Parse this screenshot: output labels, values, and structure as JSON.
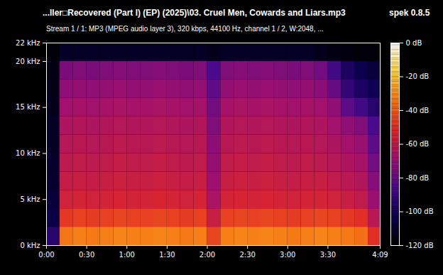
{
  "chart_data": {
    "type": "heatmap",
    "title": "...ller□Recovered (Part I) (EP) (2025)\\03. Cruel Men, Cowards and Liars.mp3",
    "annotation": "spek 0.8.5",
    "subtitle": "Stream 1 / 1: MP3 (MPEG audio layer 3), 320 kbps, 44100 Hz, channel 1 / 2, W:2048, ...",
    "xlim": [
      0,
      249
    ],
    "xticks": [
      {
        "value": 0,
        "label": "0:00"
      },
      {
        "value": 30,
        "label": "0:30"
      },
      {
        "value": 60,
        "label": "1:00"
      },
      {
        "value": 90,
        "label": "1:30"
      },
      {
        "value": 120,
        "label": "2:00"
      },
      {
        "value": 150,
        "label": "2:30"
      },
      {
        "value": 180,
        "label": "3:00"
      },
      {
        "value": 210,
        "label": "3:30"
      },
      {
        "value": 249,
        "label": "4:09"
      }
    ],
    "ylim": [
      0,
      22
    ],
    "yticks": [
      {
        "value": 0,
        "label": "0 kHz"
      },
      {
        "value": 5,
        "label": "5 kHz"
      },
      {
        "value": 10,
        "label": "10 kHz"
      },
      {
        "value": 15,
        "label": "15 kHz"
      },
      {
        "value": 20,
        "label": "20 kHz"
      },
      {
        "value": 22,
        "label": "22 kHz"
      }
    ],
    "time_bins": [
      0,
      10,
      20,
      30,
      40,
      50,
      60,
      70,
      80,
      90,
      100,
      110,
      120,
      130,
      140,
      150,
      160,
      170,
      180,
      190,
      200,
      210,
      220,
      230,
      240,
      249
    ],
    "freq_bins": [
      0,
      2,
      4,
      6,
      8,
      10,
      12,
      14,
      16,
      18,
      20,
      22
    ],
    "cells": [
      [
        -95,
        -35,
        -33,
        -34,
        -33,
        -32,
        -33,
        -33,
        -32,
        -33,
        -34,
        -33,
        -45,
        -33,
        -32,
        -33,
        -32,
        -33,
        -34,
        -33,
        -32,
        -33,
        -34,
        -36,
        -50
      ],
      [
        -105,
        -48,
        -46,
        -47,
        -46,
        -45,
        -46,
        -46,
        -45,
        -46,
        -47,
        -46,
        -58,
        -46,
        -45,
        -46,
        -45,
        -46,
        -47,
        -46,
        -45,
        -46,
        -48,
        -50,
        -62
      ],
      [
        -108,
        -56,
        -55,
        -56,
        -55,
        -54,
        -55,
        -55,
        -54,
        -55,
        -56,
        -55,
        -66,
        -55,
        -54,
        -55,
        -54,
        -55,
        -56,
        -55,
        -55,
        -56,
        -58,
        -60,
        -70
      ],
      [
        -110,
        -59,
        -58,
        -59,
        -58,
        -57,
        -58,
        -58,
        -57,
        -58,
        -59,
        -58,
        -69,
        -58,
        -57,
        -58,
        -57,
        -58,
        -59,
        -58,
        -58,
        -60,
        -62,
        -64,
        -74
      ],
      [
        -110,
        -61,
        -60,
        -61,
        -60,
        -59,
        -60,
        -60,
        -59,
        -60,
        -61,
        -60,
        -71,
        -60,
        -59,
        -60,
        -59,
        -60,
        -61,
        -60,
        -61,
        -63,
        -65,
        -67,
        -78
      ],
      [
        -112,
        -63,
        -62,
        -63,
        -62,
        -61,
        -62,
        -62,
        -61,
        -62,
        -63,
        -62,
        -73,
        -62,
        -61,
        -62,
        -61,
        -62,
        -63,
        -62,
        -63,
        -65,
        -68,
        -70,
        -82
      ],
      [
        -112,
        -65,
        -64,
        -65,
        -64,
        -63,
        -64,
        -64,
        -63,
        -64,
        -65,
        -64,
        -75,
        -64,
        -63,
        -64,
        -63,
        -64,
        -65,
        -64,
        -65,
        -68,
        -72,
        -75,
        -86
      ],
      [
        -114,
        -68,
        -67,
        -68,
        -67,
        -66,
        -67,
        -67,
        -66,
        -67,
        -68,
        -67,
        -78,
        -67,
        -66,
        -67,
        -66,
        -67,
        -68,
        -67,
        -68,
        -72,
        -82,
        -88,
        -95
      ],
      [
        -115,
        -72,
        -71,
        -72,
        -71,
        -70,
        -71,
        -71,
        -70,
        -71,
        -72,
        -71,
        -82,
        -71,
        -70,
        -71,
        -70,
        -71,
        -72,
        -71,
        -73,
        -80,
        -92,
        -98,
        -102
      ],
      [
        -116,
        -76,
        -75,
        -76,
        -75,
        -74,
        -75,
        -75,
        -74,
        -75,
        -76,
        -75,
        -86,
        -75,
        -74,
        -75,
        -74,
        -75,
        -76,
        -75,
        -78,
        -88,
        -98,
        -104,
        -108
      ],
      [
        -118,
        -112,
        -112,
        -112,
        -112,
        -112,
        -112,
        -112,
        -112,
        -112,
        -112,
        -112,
        -114,
        -112,
        -112,
        -112,
        -112,
        -112,
        -112,
        -112,
        -114,
        -116,
        -117,
        -118,
        -118
      ]
    ],
    "colorbar": {
      "lim": [
        -120,
        0
      ],
      "ticks": [
        {
          "value": 0,
          "label": "0 dB"
        },
        {
          "value": -20,
          "label": "-20 dB"
        },
        {
          "value": -40,
          "label": "-40 dB"
        },
        {
          "value": -60,
          "label": "-60 dB"
        },
        {
          "value": -80,
          "label": "-80 dB"
        },
        {
          "value": -100,
          "label": "-100 dB"
        },
        {
          "value": -120,
          "label": "-120 dB"
        }
      ]
    }
  }
}
